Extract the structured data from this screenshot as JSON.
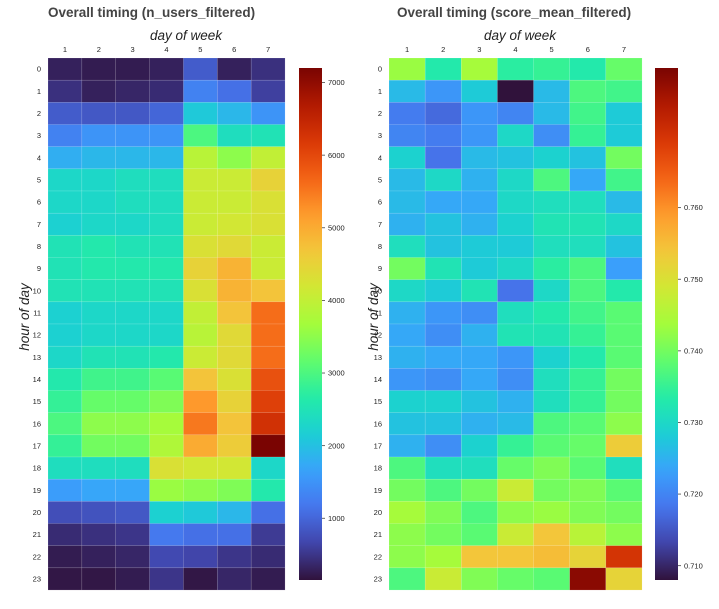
{
  "chart_data": [
    {
      "type": "heatmap",
      "title": "Overall timing (n_users_filtered)",
      "xlabel": "day of week",
      "ylabel": "hour of day",
      "x": [
        1,
        2,
        3,
        4,
        5,
        6,
        7
      ],
      "y": [
        0,
        1,
        2,
        3,
        4,
        5,
        6,
        7,
        8,
        9,
        10,
        11,
        12,
        13,
        14,
        15,
        16,
        17,
        18,
        19,
        20,
        21,
        22,
        23
      ],
      "colorscale": "turbo",
      "zlim": [
        150,
        7200
      ],
      "colorbar_ticks": [
        1000,
        2000,
        3000,
        4000,
        5000,
        6000,
        7000
      ],
      "colorbar_tick_labels": [
        "1000",
        "2000",
        "3000",
        "4000",
        "5000",
        "6000",
        "7000"
      ],
      "z": [
        [
          300,
          250,
          250,
          300,
          900,
          300,
          450
        ],
        [
          450,
          300,
          350,
          400,
          1300,
          1100,
          600
        ],
        [
          900,
          850,
          850,
          1000,
          2100,
          1900,
          1500
        ],
        [
          1300,
          1500,
          1500,
          1500,
          3000,
          2400,
          2500
        ],
        [
          1800,
          1900,
          1900,
          1900,
          3900,
          3500,
          4000
        ],
        [
          2300,
          2300,
          2400,
          2400,
          4100,
          4100,
          4500
        ],
        [
          2300,
          2300,
          2400,
          2400,
          4100,
          4100,
          4300
        ],
        [
          2200,
          2300,
          2300,
          2400,
          4100,
          4200,
          4300
        ],
        [
          2500,
          2600,
          2500,
          2500,
          4300,
          4400,
          4100
        ],
        [
          2500,
          2600,
          2600,
          2600,
          4500,
          4900,
          4100
        ],
        [
          2500,
          2500,
          2500,
          2500,
          4300,
          4900,
          4700
        ],
        [
          2200,
          2300,
          2300,
          2300,
          4000,
          4700,
          5600
        ],
        [
          2200,
          2300,
          2300,
          2300,
          3900,
          4400,
          5600
        ],
        [
          2300,
          2500,
          2500,
          2600,
          4100,
          4400,
          5600
        ],
        [
          2600,
          2900,
          2900,
          3100,
          4700,
          4300,
          5900
        ],
        [
          2800,
          3200,
          3200,
          3400,
          5200,
          4500,
          6100
        ],
        [
          3000,
          3500,
          3500,
          3700,
          5500,
          4700,
          6300
        ],
        [
          2800,
          3300,
          3300,
          3800,
          5000,
          4600,
          7200
        ],
        [
          2400,
          2400,
          2400,
          4300,
          4200,
          4200,
          2300
        ],
        [
          1600,
          1700,
          1700,
          3600,
          3500,
          3400,
          2600
        ],
        [
          750,
          800,
          850,
          2200,
          2100,
          1900,
          1100
        ],
        [
          400,
          450,
          500,
          1200,
          1100,
          1100,
          550
        ],
        [
          250,
          300,
          350,
          700,
          650,
          500,
          400
        ],
        [
          200,
          200,
          250,
          500,
          200,
          350,
          250
        ]
      ]
    },
    {
      "type": "heatmap",
      "title": "Overall timing (score_mean_filtered)",
      "xlabel": "day of week",
      "ylabel": "hour of day",
      "x": [
        1,
        2,
        3,
        4,
        5,
        6,
        7
      ],
      "y": [
        0,
        1,
        2,
        3,
        4,
        5,
        6,
        7,
        8,
        9,
        10,
        11,
        12,
        13,
        14,
        15,
        16,
        17,
        18,
        19,
        20,
        21,
        22,
        23
      ],
      "colorscale": "turbo",
      "zlim": [
        0.708,
        0.7795
      ],
      "colorbar_ticks": [
        0.71,
        0.72,
        0.73,
        0.74,
        0.75,
        0.76
      ],
      "colorbar_tick_labels": [
        "0.710",
        "0.720",
        "0.730",
        "0.740",
        "0.750",
        "0.760"
      ],
      "z": [
        [
          0.743,
          0.733,
          0.744,
          0.734,
          0.735,
          0.733,
          0.739
        ],
        [
          0.726,
          0.722,
          0.728,
          0.708,
          0.726,
          0.737,
          0.736
        ],
        [
          0.719,
          0.717,
          0.722,
          0.72,
          0.726,
          0.736,
          0.728
        ],
        [
          0.72,
          0.719,
          0.722,
          0.73,
          0.721,
          0.735,
          0.728
        ],
        [
          0.729,
          0.718,
          0.726,
          0.727,
          0.729,
          0.727,
          0.74
        ],
        [
          0.726,
          0.73,
          0.725,
          0.73,
          0.737,
          0.724,
          0.736
        ],
        [
          0.726,
          0.724,
          0.724,
          0.73,
          0.731,
          0.731,
          0.726
        ],
        [
          0.725,
          0.727,
          0.725,
          0.729,
          0.732,
          0.732,
          0.73
        ],
        [
          0.731,
          0.727,
          0.728,
          0.728,
          0.731,
          0.731,
          0.727
        ],
        [
          0.74,
          0.732,
          0.728,
          0.73,
          0.734,
          0.737,
          0.723
        ],
        [
          0.73,
          0.728,
          0.732,
          0.718,
          0.73,
          0.737,
          0.733
        ],
        [
          0.725,
          0.722,
          0.721,
          0.731,
          0.733,
          0.736,
          0.738
        ],
        [
          0.724,
          0.721,
          0.725,
          0.732,
          0.732,
          0.735,
          0.738
        ],
        [
          0.725,
          0.724,
          0.724,
          0.722,
          0.729,
          0.733,
          0.738
        ],
        [
          0.722,
          0.721,
          0.724,
          0.721,
          0.731,
          0.735,
          0.74
        ],
        [
          0.729,
          0.729,
          0.727,
          0.725,
          0.731,
          0.735,
          0.74
        ],
        [
          0.727,
          0.727,
          0.725,
          0.726,
          0.737,
          0.738,
          0.742
        ],
        [
          0.725,
          0.721,
          0.729,
          0.735,
          0.738,
          0.739,
          0.753
        ],
        [
          0.737,
          0.731,
          0.731,
          0.739,
          0.741,
          0.738,
          0.731
        ],
        [
          0.74,
          0.737,
          0.74,
          0.748,
          0.74,
          0.741,
          0.738
        ],
        [
          0.744,
          0.741,
          0.737,
          0.742,
          0.743,
          0.741,
          0.74
        ],
        [
          0.742,
          0.74,
          0.738,
          0.748,
          0.754,
          0.746,
          0.742
        ],
        [
          0.742,
          0.744,
          0.754,
          0.754,
          0.755,
          0.752,
          0.77
        ],
        [
          0.737,
          0.748,
          0.741,
          0.739,
          0.738,
          0.778,
          0.752
        ]
      ]
    }
  ]
}
